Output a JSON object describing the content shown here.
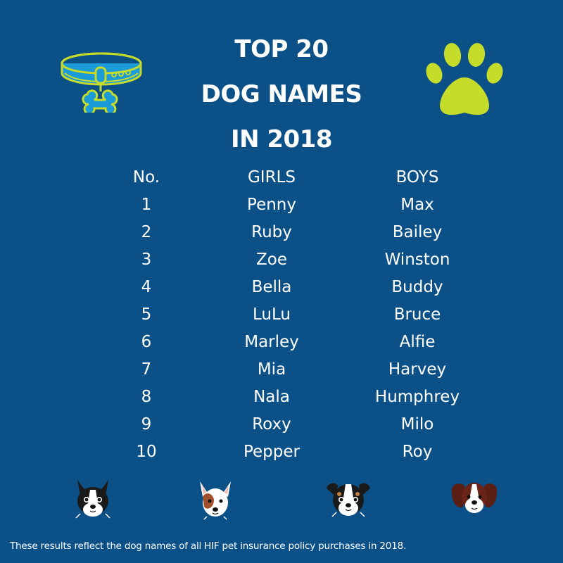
{
  "title": {
    "line1": "TOP 20",
    "line2": "DOG NAMES",
    "line3": "IN 2018"
  },
  "colors": {
    "background": "#0b5087",
    "text": "#ffffff",
    "accent_green": "#c6dc2a",
    "collar_blue": "#1b9bd7"
  },
  "icons": [
    "dog-collar-icon",
    "paw-print-icon",
    "black-white-dog-icon",
    "brown-white-dog-icon",
    "tricolor-puppy-icon",
    "spaniel-dog-icon"
  ],
  "table": {
    "headers": [
      "No.",
      "GIRLS",
      "BOYS"
    ],
    "rows": [
      [
        "1",
        "Penny",
        "Max"
      ],
      [
        "2",
        "Ruby",
        "Bailey"
      ],
      [
        "3",
        "Zoe",
        "Winston"
      ],
      [
        "4",
        "Bella",
        "Buddy"
      ],
      [
        "5",
        "LuLu",
        "Bruce"
      ],
      [
        "6",
        "Marley",
        "Alfie"
      ],
      [
        "7",
        "Mia",
        "Harvey"
      ],
      [
        "8",
        "Nala",
        "Humphrey"
      ],
      [
        "9",
        "Roxy",
        "Milo"
      ],
      [
        "10",
        "Pepper",
        "Roy"
      ]
    ]
  },
  "footnote": "These results reflect the dog names of all HIF pet insurance policy purchases in 2018."
}
